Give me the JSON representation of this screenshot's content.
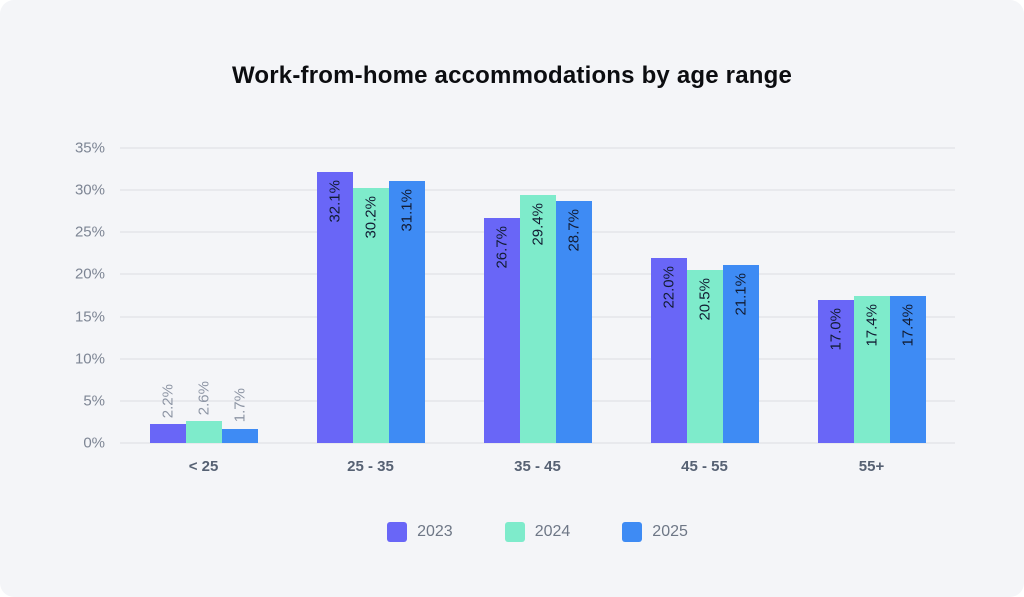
{
  "page": {
    "background_color": "#f4f5f8",
    "title_color": "#0c0d10"
  },
  "chart_data": {
    "type": "bar",
    "title": "Work-from-home accommodations by age range",
    "categories": [
      "< 25",
      "25 - 35",
      "35 - 45",
      "45 - 55",
      "55+"
    ],
    "series": [
      {
        "name": "2023",
        "color": "#6966f7",
        "values": [
          2.2,
          32.1,
          26.7,
          22.0,
          17.0
        ]
      },
      {
        "name": "2024",
        "color": "#7eebcb",
        "values": [
          2.6,
          30.2,
          29.4,
          20.5,
          17.4
        ]
      },
      {
        "name": "2025",
        "color": "#3e8bf4",
        "values": [
          1.7,
          31.1,
          28.7,
          21.1,
          17.4
        ]
      }
    ],
    "y_ticks": [
      "0%",
      "5%",
      "10%",
      "15%",
      "20%",
      "25%",
      "30%",
      "35%"
    ],
    "ylim": [
      0,
      35
    ],
    "value_suffix": "%",
    "value_decimals": 1,
    "grid": true,
    "legend_position": "bottom",
    "label_color_inside": "#121c33",
    "label_color_outside": "#8d95a4",
    "axis_label_color": "#7d8594",
    "category_label_color": "#566173",
    "gridline_color": "#e8e9ed"
  }
}
